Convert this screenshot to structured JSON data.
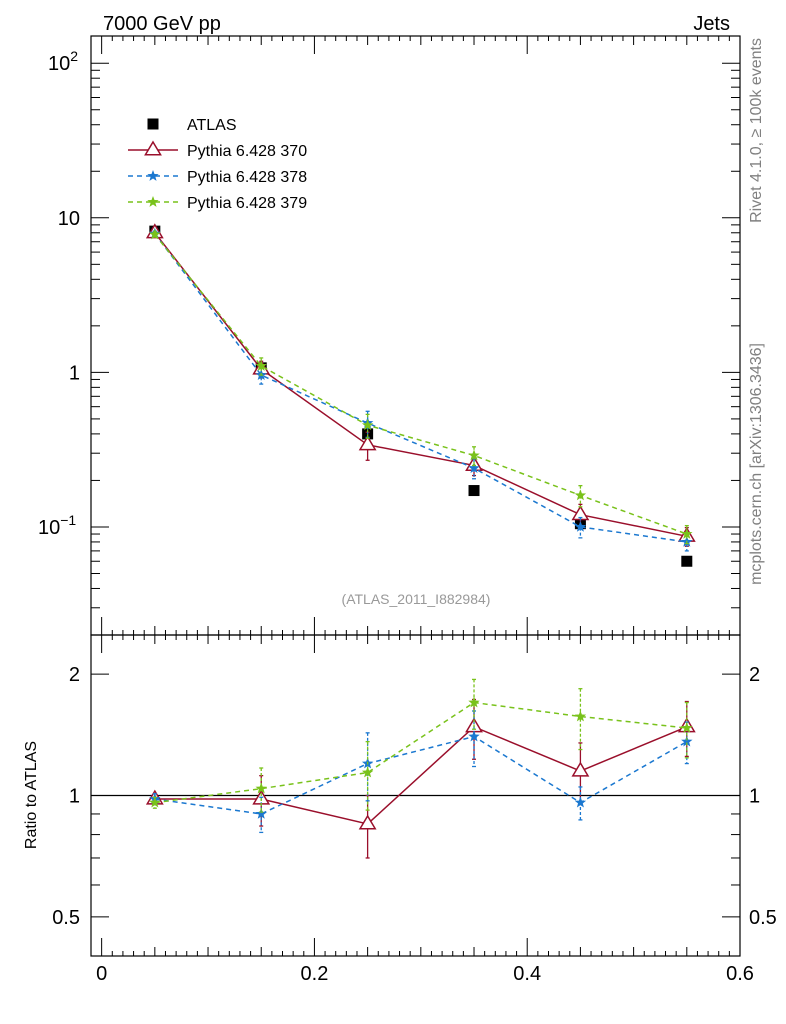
{
  "header": {
    "left": "7000 GeV pp",
    "right": "Jets"
  },
  "side_labels": {
    "top": "Rivet 4.1.0, ≥ 100k events",
    "bottom": "mcplots.cern.ch [arXiv:1306.3436]"
  },
  "analysis_tag": "(ATLAS_2011_I882984)",
  "colors": {
    "atlas": "#000000",
    "p370": "#9a0f2b",
    "p378": "#1b78d0",
    "p379": "#79c21b"
  },
  "chart_data": [
    {
      "type": "line",
      "name": "main",
      "yscale": "log",
      "ylim": [
        0.02,
        150
      ],
      "xlim": [
        -0.01,
        0.6
      ],
      "y_ticks": [
        {
          "value": 100,
          "label": "10",
          "exp": "2"
        },
        {
          "value": 10,
          "label": "10",
          "exp": ""
        },
        {
          "value": 1,
          "label": "1",
          "exp": ""
        },
        {
          "value": 0.1,
          "label": "10",
          "exp": "−1"
        }
      ],
      "x": [
        0.05,
        0.15,
        0.25,
        0.35,
        0.45,
        0.55
      ],
      "series": [
        {
          "name": "ATLAS",
          "key": "atlas",
          "style": "square",
          "values": [
            8.2,
            1.07,
            0.4,
            0.172,
            0.105,
            0.06
          ],
          "err": [
            0,
            0,
            0,
            0,
            0,
            0
          ]
        },
        {
          "name": "Pythia 6.428 370",
          "key": "p370",
          "style": "triangle-solid",
          "values": [
            8.0,
            1.05,
            0.34,
            0.25,
            0.12,
            0.087
          ],
          "err": [
            0.3,
            0.13,
            0.07,
            0.035,
            0.02,
            0.012
          ]
        },
        {
          "name": "Pythia 6.428 378",
          "key": "p378",
          "style": "star-dashed",
          "values": [
            7.9,
            0.96,
            0.47,
            0.24,
            0.1,
            0.08
          ],
          "err": [
            0.3,
            0.12,
            0.09,
            0.035,
            0.015,
            0.01
          ]
        },
        {
          "name": "Pythia 6.428 379",
          "key": "p379",
          "style": "star-dashed",
          "values": [
            7.8,
            1.1,
            0.455,
            0.29,
            0.16,
            0.09
          ],
          "err": [
            0.3,
            0.14,
            0.08,
            0.04,
            0.025,
            0.012
          ]
        }
      ]
    },
    {
      "type": "line",
      "name": "ratio",
      "ylabel": "Ratio to ATLAS",
      "yscale": "log",
      "ylim": [
        0.4,
        2.5
      ],
      "xlim": [
        -0.01,
        0.6
      ],
      "y_ticks": [
        {
          "value": 2,
          "label": "2"
        },
        {
          "value": 1,
          "label": "1"
        },
        {
          "value": 0.5,
          "label": "0.5"
        }
      ],
      "x_ticks": [
        {
          "value": 0,
          "label": "0"
        },
        {
          "value": 0.2,
          "label": "0.2"
        },
        {
          "value": 0.4,
          "label": "0.4"
        },
        {
          "value": 0.6,
          "label": "0.6"
        }
      ],
      "x": [
        0.05,
        0.15,
        0.25,
        0.35,
        0.45,
        0.55
      ],
      "series": [
        {
          "name": "Pythia 6.428 370",
          "key": "p370",
          "style": "triangle-solid",
          "values": [
            0.98,
            0.98,
            0.85,
            1.48,
            1.15,
            1.48
          ],
          "err": [
            0.03,
            0.14,
            0.15,
            0.25,
            0.2,
            0.23
          ]
        },
        {
          "name": "Pythia 6.428 378",
          "key": "p378",
          "style": "star-dashed",
          "values": [
            0.98,
            0.9,
            1.2,
            1.4,
            0.96,
            1.36
          ],
          "err": [
            0.03,
            0.09,
            0.23,
            0.22,
            0.09,
            0.16
          ]
        },
        {
          "name": "Pythia 6.428 379",
          "key": "p379",
          "style": "star-dashed",
          "values": [
            0.96,
            1.04,
            1.14,
            1.7,
            1.57,
            1.47
          ],
          "err": [
            0.03,
            0.13,
            0.22,
            0.24,
            0.27,
            0.23
          ]
        }
      ]
    }
  ]
}
